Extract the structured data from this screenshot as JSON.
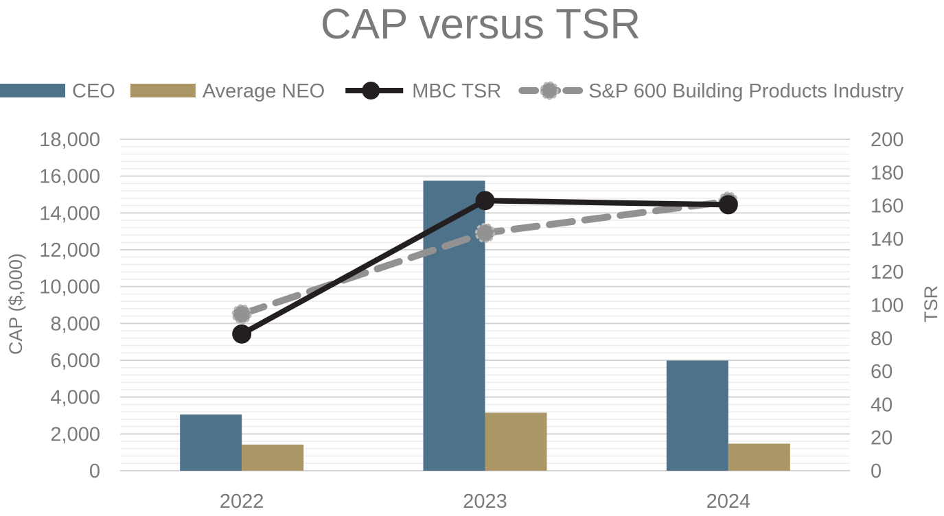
{
  "chart_data": {
    "type": "bar",
    "title": "CAP versus TSR",
    "categories": [
      "2022",
      "2023",
      "2024"
    ],
    "ylabel": "CAP ($,000)",
    "y2label": "TSR",
    "ylim": [
      0,
      18000
    ],
    "y2lim": [
      0,
      200
    ],
    "yticks": [
      "0",
      "2,000",
      "4,000",
      "6,000",
      "8,000",
      "10,000",
      "12,000",
      "14,000",
      "16,000",
      "18,000"
    ],
    "y2ticks": [
      "0",
      "20",
      "40",
      "60",
      "80",
      "100",
      "120",
      "140",
      "160",
      "180",
      "200"
    ],
    "legend_position": "top",
    "grid": true,
    "series": [
      {
        "name": "CEO",
        "kind": "bar",
        "axis": "left",
        "color": "#4e7289",
        "values": [
          3050,
          15750,
          5980
        ]
      },
      {
        "name": "Average NEO",
        "kind": "bar",
        "axis": "left",
        "color": "#ab9766",
        "values": [
          1420,
          3150,
          1470
        ]
      },
      {
        "name": "MBC TSR",
        "kind": "line",
        "axis": "right",
        "color": "#231f20",
        "style": "solid",
        "values": [
          82.5,
          163,
          160.5
        ]
      },
      {
        "name": "S&P 600 Building Products Industry",
        "kind": "line",
        "axis": "right",
        "color": "#929292",
        "style": "dashed",
        "values": [
          94.5,
          143.5,
          162.5
        ]
      }
    ]
  }
}
